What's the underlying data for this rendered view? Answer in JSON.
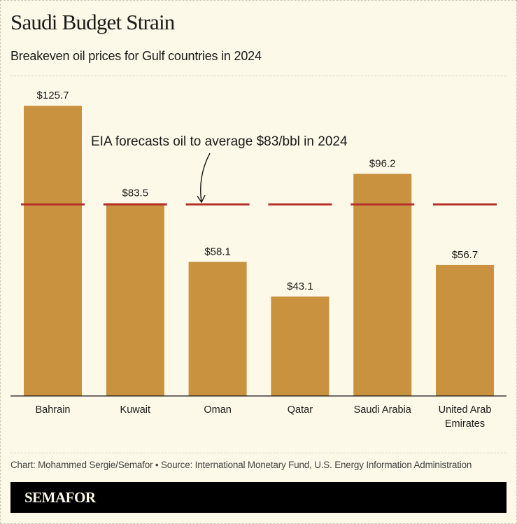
{
  "chart_data": {
    "type": "bar",
    "title": "Saudi Budget Strain",
    "subtitle": "Breakeven oil prices for Gulf countries in 2024",
    "categories": [
      "Bahrain",
      "Kuwait",
      "Oman",
      "Qatar",
      "Saudi Arabia",
      "United Arab Emirates"
    ],
    "category_lines": [
      [
        "Bahrain"
      ],
      [
        "Kuwait"
      ],
      [
        "Oman"
      ],
      [
        "Qatar"
      ],
      [
        "Saudi Arabia"
      ],
      [
        "United Arab",
        "Emirates"
      ]
    ],
    "values": [
      125.7,
      83.5,
      58.1,
      43.1,
      96.2,
      56.7
    ],
    "data_labels": [
      "$125.7",
      "$83.5",
      "$58.1",
      "$43.1",
      "$96.2",
      "$56.7"
    ],
    "reference_line": {
      "value": 83,
      "label": "EIA forecasts oil to average $83/bbl in 2024"
    },
    "ylim": [
      0,
      140
    ],
    "grid": false,
    "colors": {
      "bar": "#c8923f",
      "reference": "#b5312a",
      "background": "#fcf9e8"
    }
  },
  "footer": {
    "credit": "Chart: Mohammed Sergie/Semafor • Source: International Monetary Fund, U.S. Energy Information Administration",
    "brand": "SEMAFOR"
  }
}
